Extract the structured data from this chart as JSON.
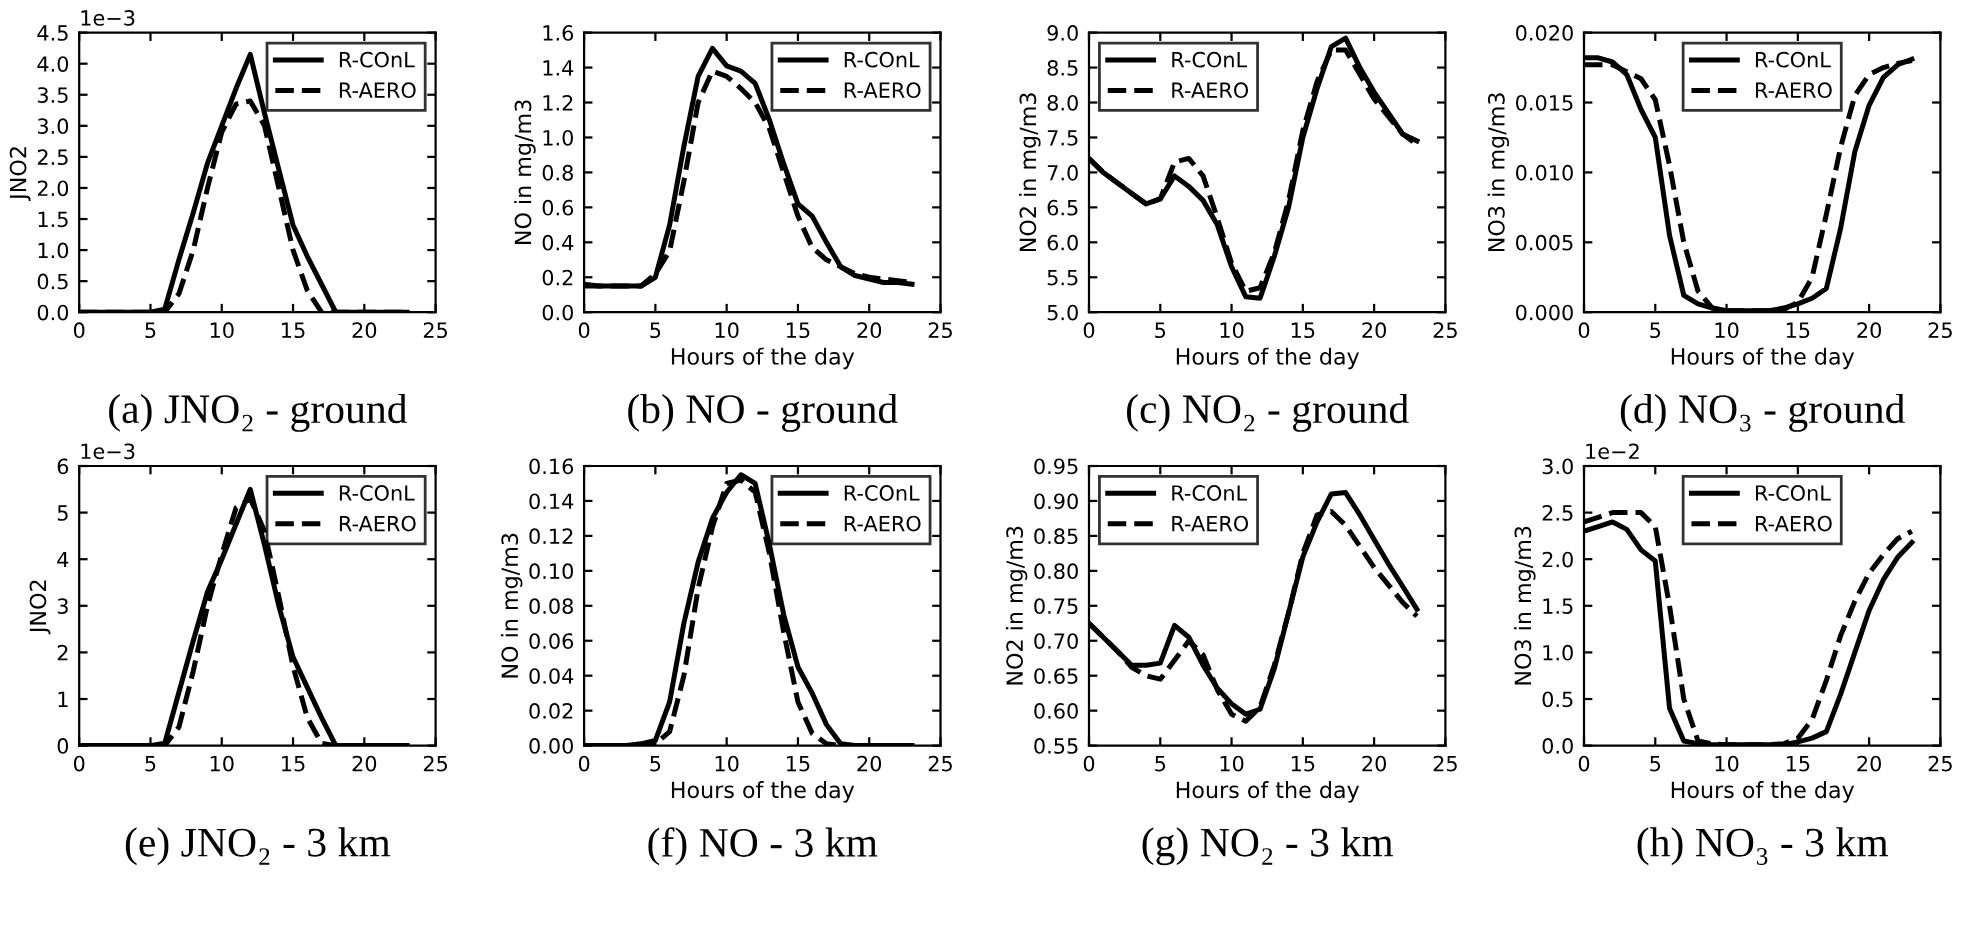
{
  "chart_data": [
    {
      "type": "line",
      "title": "(a) JNO₂ - ground",
      "ylabel": "JNO2",
      "annotations": [
        "1e−3"
      ],
      "x": [
        0,
        1,
        2,
        3,
        4,
        5,
        6,
        7,
        8,
        9,
        10,
        11,
        12,
        13,
        14,
        15,
        16,
        17,
        18,
        19,
        20,
        21,
        22,
        23
      ],
      "series": [
        {
          "name": "R-COnL",
          "color": "#000000",
          "line_style": "solid",
          "values": [
            0,
            0,
            0,
            0,
            0,
            0,
            0.05,
            0.85,
            1.6,
            2.4,
            3.0,
            3.6,
            4.15,
            3.2,
            2.3,
            1.4,
            0.9,
            0.45,
            0,
            0,
            0,
            0,
            0,
            0
          ]
        },
        {
          "name": "R-AERO",
          "color": "#000000",
          "line_style": "dashed",
          "values": [
            0,
            0,
            0,
            0,
            0,
            0,
            0,
            0.3,
            1.0,
            2.0,
            2.9,
            3.35,
            3.4,
            3.0,
            2.0,
            1.0,
            0.35,
            0,
            0,
            0,
            0,
            0,
            0,
            0
          ]
        }
      ],
      "xlim": [
        0,
        25
      ],
      "xticks": [
        0,
        5,
        10,
        15,
        20,
        25
      ],
      "ylim": [
        0,
        4.5
      ],
      "yticks": [
        {
          "value": 0,
          "label": "0.0"
        },
        {
          "value": 0.5,
          "label": "0.5"
        },
        {
          "value": 1,
          "label": "1.0"
        },
        {
          "value": 1.5,
          "label": "1.5"
        },
        {
          "value": 2,
          "label": "2.0"
        },
        {
          "value": 2.5,
          "label": "2.5"
        },
        {
          "value": 3,
          "label": "3.0"
        },
        {
          "value": 3.5,
          "label": "3.5"
        },
        {
          "value": 4,
          "label": "4.0"
        },
        {
          "value": 4.5,
          "label": "4.5"
        }
      ],
      "legend": "top right"
    },
    {
      "type": "line",
      "title": "(b) NO - ground",
      "xlabel": "Hours of the day",
      "ylabel": "NO in mg/m3",
      "x": [
        0,
        1,
        2,
        3,
        4,
        5,
        6,
        7,
        8,
        9,
        10,
        11,
        12,
        13,
        14,
        15,
        16,
        17,
        18,
        19,
        20,
        21,
        22,
        23
      ],
      "series": [
        {
          "name": "R-COnL",
          "color": "#000000",
          "line_style": "solid",
          "values": [
            0.16,
            0.15,
            0.15,
            0.15,
            0.15,
            0.2,
            0.5,
            0.95,
            1.35,
            1.51,
            1.41,
            1.38,
            1.31,
            1.1,
            0.85,
            0.62,
            0.55,
            0.4,
            0.26,
            0.21,
            0.19,
            0.17,
            0.17,
            0.16
          ]
        },
        {
          "name": "R-AERO",
          "color": "#000000",
          "line_style": "dashed",
          "values": [
            0.15,
            0.15,
            0.15,
            0.15,
            0.15,
            0.22,
            0.35,
            0.75,
            1.2,
            1.38,
            1.35,
            1.28,
            1.2,
            1.05,
            0.8,
            0.55,
            0.37,
            0.3,
            0.26,
            0.22,
            0.2,
            0.19,
            0.18,
            0.17
          ]
        }
      ],
      "xlim": [
        0,
        25
      ],
      "xticks": [
        0,
        5,
        10,
        15,
        20,
        25
      ],
      "ylim": [
        0,
        1.6
      ],
      "yticks": [
        {
          "value": 0,
          "label": "0.0"
        },
        {
          "value": 0.2,
          "label": "0.2"
        },
        {
          "value": 0.4,
          "label": "0.4"
        },
        {
          "value": 0.6,
          "label": "0.6"
        },
        {
          "value": 0.8,
          "label": "0.8"
        },
        {
          "value": 1.0,
          "label": "1.0"
        },
        {
          "value": 1.2,
          "label": "1.2"
        },
        {
          "value": 1.4,
          "label": "1.4"
        },
        {
          "value": 1.6,
          "label": "1.6"
        }
      ],
      "legend": "top right"
    },
    {
      "type": "line",
      "title": "(c) NO₂ - ground",
      "xlabel": "Hours of the day",
      "ylabel": "NO2 in mg/m3",
      "x": [
        0,
        1,
        2,
        3,
        4,
        5,
        6,
        7,
        8,
        9,
        10,
        11,
        12,
        13,
        14,
        15,
        16,
        17,
        18,
        19,
        20,
        21,
        22,
        23
      ],
      "series": [
        {
          "name": "R-COnL",
          "color": "#000000",
          "line_style": "solid",
          "values": [
            7.2,
            7.0,
            6.85,
            6.7,
            6.55,
            6.62,
            6.95,
            6.8,
            6.6,
            6.25,
            5.65,
            5.22,
            5.2,
            5.8,
            6.5,
            7.5,
            8.2,
            8.8,
            8.92,
            8.5,
            8.15,
            7.85,
            7.55,
            7.45
          ]
        },
        {
          "name": "R-AERO",
          "color": "#000000",
          "line_style": "dashed",
          "values": [
            7.2,
            7.0,
            6.85,
            6.7,
            6.55,
            6.62,
            7.15,
            7.2,
            6.95,
            6.35,
            5.7,
            5.3,
            5.35,
            5.85,
            6.6,
            7.6,
            8.3,
            8.75,
            8.75,
            8.4,
            8.05,
            7.8,
            7.55,
            7.4
          ]
        }
      ],
      "xlim": [
        0,
        25
      ],
      "xticks": [
        0,
        5,
        10,
        15,
        20,
        25
      ],
      "ylim": [
        5,
        9
      ],
      "yticks": [
        {
          "value": 5,
          "label": "5.0"
        },
        {
          "value": 5.5,
          "label": "5.5"
        },
        {
          "value": 6,
          "label": "6.0"
        },
        {
          "value": 6.5,
          "label": "6.5"
        },
        {
          "value": 7,
          "label": "7.0"
        },
        {
          "value": 7.5,
          "label": "7.5"
        },
        {
          "value": 8,
          "label": "8.0"
        },
        {
          "value": 8.5,
          "label": "8.5"
        },
        {
          "value": 9,
          "label": "9.0"
        }
      ],
      "legend": "top left"
    },
    {
      "type": "line",
      "title": "(d) NO₃ - ground",
      "xlabel": "Hours of the day",
      "ylabel": "NO3 in mg/m3",
      "x": [
        0,
        1,
        2,
        3,
        4,
        5,
        6,
        7,
        8,
        9,
        10,
        11,
        12,
        13,
        14,
        15,
        16,
        17,
        18,
        19,
        20,
        21,
        22,
        23
      ],
      "series": [
        {
          "name": "R-COnL",
          "color": "#000000",
          "line_style": "solid",
          "values": [
            0.0182,
            0.0182,
            0.0179,
            0.017,
            0.0145,
            0.0125,
            0.0055,
            0.0012,
            0.0006,
            0.0003,
            0.0001,
            0.0001,
            0.0001,
            0.0001,
            0.0003,
            0.0006,
            0.001,
            0.0017,
            0.006,
            0.0115,
            0.0148,
            0.0168,
            0.0177,
            0.0181
          ]
        },
        {
          "name": "R-AERO",
          "color": "#000000",
          "line_style": "dashed",
          "values": [
            0.0177,
            0.0177,
            0.0177,
            0.0172,
            0.0167,
            0.0152,
            0.0105,
            0.005,
            0.0015,
            0.0003,
            0.0001,
            0.0001,
            0.0001,
            0.0001,
            0.0002,
            0.0007,
            0.0025,
            0.007,
            0.0118,
            0.0155,
            0.017,
            0.0175,
            0.0178,
            0.018
          ]
        }
      ],
      "xlim": [
        0,
        25
      ],
      "xticks": [
        0,
        5,
        10,
        15,
        20,
        25
      ],
      "ylim": [
        0,
        0.02
      ],
      "yticks": [
        {
          "value": 0,
          "label": "0.000"
        },
        {
          "value": 0.005,
          "label": "0.005"
        },
        {
          "value": 0.01,
          "label": "0.010"
        },
        {
          "value": 0.015,
          "label": "0.015"
        },
        {
          "value": 0.02,
          "label": "0.020"
        }
      ],
      "legend": "top"
    },
    {
      "type": "line",
      "title": "(e) JNO₂ - 3 km",
      "ylabel": "JNO2",
      "annotations": [
        "1e−3"
      ],
      "x": [
        0,
        1,
        2,
        3,
        4,
        5,
        6,
        7,
        8,
        9,
        10,
        11,
        12,
        13,
        14,
        15,
        16,
        17,
        18,
        19,
        20,
        21,
        22,
        23
      ],
      "series": [
        {
          "name": "R-COnL",
          "color": "#000000",
          "line_style": "solid",
          "values": [
            0,
            0,
            0,
            0,
            0,
            0,
            0.05,
            1.15,
            2.25,
            3.3,
            4.0,
            4.75,
            5.5,
            4.3,
            3.0,
            1.9,
            1.25,
            0.6,
            0,
            0,
            0,
            0,
            0,
            0
          ]
        },
        {
          "name": "R-AERO",
          "color": "#000000",
          "line_style": "dashed",
          "values": [
            0,
            0,
            0,
            0,
            0,
            0,
            0,
            0.4,
            1.6,
            3.0,
            4.1,
            5.1,
            5.3,
            4.6,
            3.2,
            1.7,
            0.6,
            0.05,
            0,
            0,
            0,
            0,
            0,
            0
          ]
        }
      ],
      "xlim": [
        0,
        25
      ],
      "xticks": [
        0,
        5,
        10,
        15,
        20,
        25
      ],
      "ylim": [
        0,
        6
      ],
      "yticks": [
        0,
        1,
        2,
        3,
        4,
        5,
        6
      ],
      "legend": "top right"
    },
    {
      "type": "line",
      "title": "(f) NO - 3 km",
      "xlabel": "Hours of the day",
      "ylabel": "NO in mg/m3",
      "x": [
        0,
        1,
        2,
        3,
        4,
        5,
        6,
        7,
        8,
        9,
        10,
        11,
        12,
        13,
        14,
        15,
        16,
        17,
        18,
        19,
        20,
        21,
        22,
        23
      ],
      "series": [
        {
          "name": "R-COnL",
          "color": "#000000",
          "line_style": "solid",
          "values": [
            0,
            0,
            0,
            0,
            0.001,
            0.003,
            0.025,
            0.07,
            0.105,
            0.13,
            0.145,
            0.155,
            0.15,
            0.115,
            0.075,
            0.045,
            0.03,
            0.012,
            0.001,
            0,
            0,
            0,
            0,
            0
          ]
        },
        {
          "name": "R-AERO",
          "color": "#000000",
          "line_style": "dashed",
          "values": [
            0,
            0,
            0,
            0,
            0,
            0.001,
            0.008,
            0.04,
            0.09,
            0.125,
            0.15,
            0.152,
            0.145,
            0.11,
            0.065,
            0.025,
            0.007,
            0.001,
            0,
            0,
            0,
            0,
            0,
            0
          ]
        }
      ],
      "xlim": [
        0,
        25
      ],
      "xticks": [
        0,
        5,
        10,
        15,
        20,
        25
      ],
      "ylim": [
        0,
        0.16
      ],
      "yticks": [
        {
          "value": 0,
          "label": "0.00"
        },
        {
          "value": 0.02,
          "label": "0.02"
        },
        {
          "value": 0.04,
          "label": "0.04"
        },
        {
          "value": 0.06,
          "label": "0.06"
        },
        {
          "value": 0.08,
          "label": "0.08"
        },
        {
          "value": 0.1,
          "label": "0.10"
        },
        {
          "value": 0.12,
          "label": "0.12"
        },
        {
          "value": 0.14,
          "label": "0.14"
        },
        {
          "value": 0.16,
          "label": "0.16"
        }
      ],
      "legend": "top right"
    },
    {
      "type": "line",
      "title": "(g) NO₂ - 3 km",
      "xlabel": "Hours of the day",
      "ylabel": "NO2 in mg/m3",
      "x": [
        0,
        1,
        2,
        3,
        4,
        5,
        6,
        7,
        8,
        9,
        10,
        11,
        12,
        13,
        14,
        15,
        16,
        17,
        18,
        19,
        20,
        21,
        22,
        23
      ],
      "series": [
        {
          "name": "R-COnL",
          "color": "#000000",
          "line_style": "solid",
          "values": [
            0.725,
            0.705,
            0.685,
            0.665,
            0.665,
            0.668,
            0.722,
            0.705,
            0.665,
            0.632,
            0.61,
            0.595,
            0.602,
            0.66,
            0.74,
            0.82,
            0.87,
            0.91,
            0.912,
            0.88,
            0.845,
            0.81,
            0.778,
            0.745
          ]
        },
        {
          "name": "R-AERO",
          "color": "#000000",
          "line_style": "dashed",
          "values": [
            0.725,
            0.705,
            0.685,
            0.662,
            0.65,
            0.645,
            0.672,
            0.7,
            0.68,
            0.63,
            0.595,
            0.585,
            0.605,
            0.665,
            0.74,
            0.825,
            0.88,
            0.885,
            0.865,
            0.835,
            0.805,
            0.78,
            0.755,
            0.735
          ]
        }
      ],
      "xlim": [
        0,
        25
      ],
      "xticks": [
        0,
        5,
        10,
        15,
        20,
        25
      ],
      "ylim": [
        0.55,
        0.95
      ],
      "yticks": [
        {
          "value": 0.55,
          "label": "0.55"
        },
        {
          "value": 0.6,
          "label": "0.60"
        },
        {
          "value": 0.65,
          "label": "0.65"
        },
        {
          "value": 0.7,
          "label": "0.70"
        },
        {
          "value": 0.75,
          "label": "0.75"
        },
        {
          "value": 0.8,
          "label": "0.80"
        },
        {
          "value": 0.85,
          "label": "0.85"
        },
        {
          "value": 0.9,
          "label": "0.90"
        },
        {
          "value": 0.95,
          "label": "0.95"
        }
      ],
      "legend": "top left"
    },
    {
      "type": "line",
      "title": "(h) NO₃ - 3 km",
      "xlabel": "Hours of the day",
      "ylabel": "NO3 in mg/m3",
      "annotations": [
        "1e−2"
      ],
      "x": [
        0,
        1,
        2,
        3,
        4,
        5,
        6,
        7,
        8,
        9,
        10,
        11,
        12,
        13,
        14,
        15,
        16,
        17,
        18,
        19,
        20,
        21,
        22,
        23
      ],
      "series": [
        {
          "name": "R-COnL",
          "color": "#000000",
          "line_style": "solid",
          "values": [
            2.3,
            2.35,
            2.4,
            2.32,
            2.1,
            1.98,
            0.4,
            0.05,
            0.02,
            0.01,
            0.01,
            0.01,
            0.01,
            0.01,
            0.01,
            0.04,
            0.08,
            0.15,
            0.55,
            1.0,
            1.45,
            1.78,
            2.02,
            2.18
          ]
        },
        {
          "name": "R-AERO",
          "color": "#000000",
          "line_style": "dashed",
          "values": [
            2.4,
            2.45,
            2.5,
            2.5,
            2.5,
            2.35,
            1.5,
            0.5,
            0.05,
            0.02,
            0.01,
            0.01,
            0.01,
            0.01,
            0.02,
            0.08,
            0.28,
            0.7,
            1.18,
            1.55,
            1.85,
            2.05,
            2.22,
            2.3
          ]
        }
      ],
      "xlim": [
        0,
        25
      ],
      "xticks": [
        0,
        5,
        10,
        15,
        20,
        25
      ],
      "ylim": [
        0,
        3
      ],
      "yticks": [
        {
          "value": 0,
          "label": "0.0"
        },
        {
          "value": 0.5,
          "label": "0.5"
        },
        {
          "value": 1,
          "label": "1.0"
        },
        {
          "value": 1.5,
          "label": "1.5"
        },
        {
          "value": 2,
          "label": "2.0"
        },
        {
          "value": 2.5,
          "label": "2.5"
        },
        {
          "value": 3,
          "label": "3.0"
        }
      ],
      "legend": "top"
    }
  ]
}
